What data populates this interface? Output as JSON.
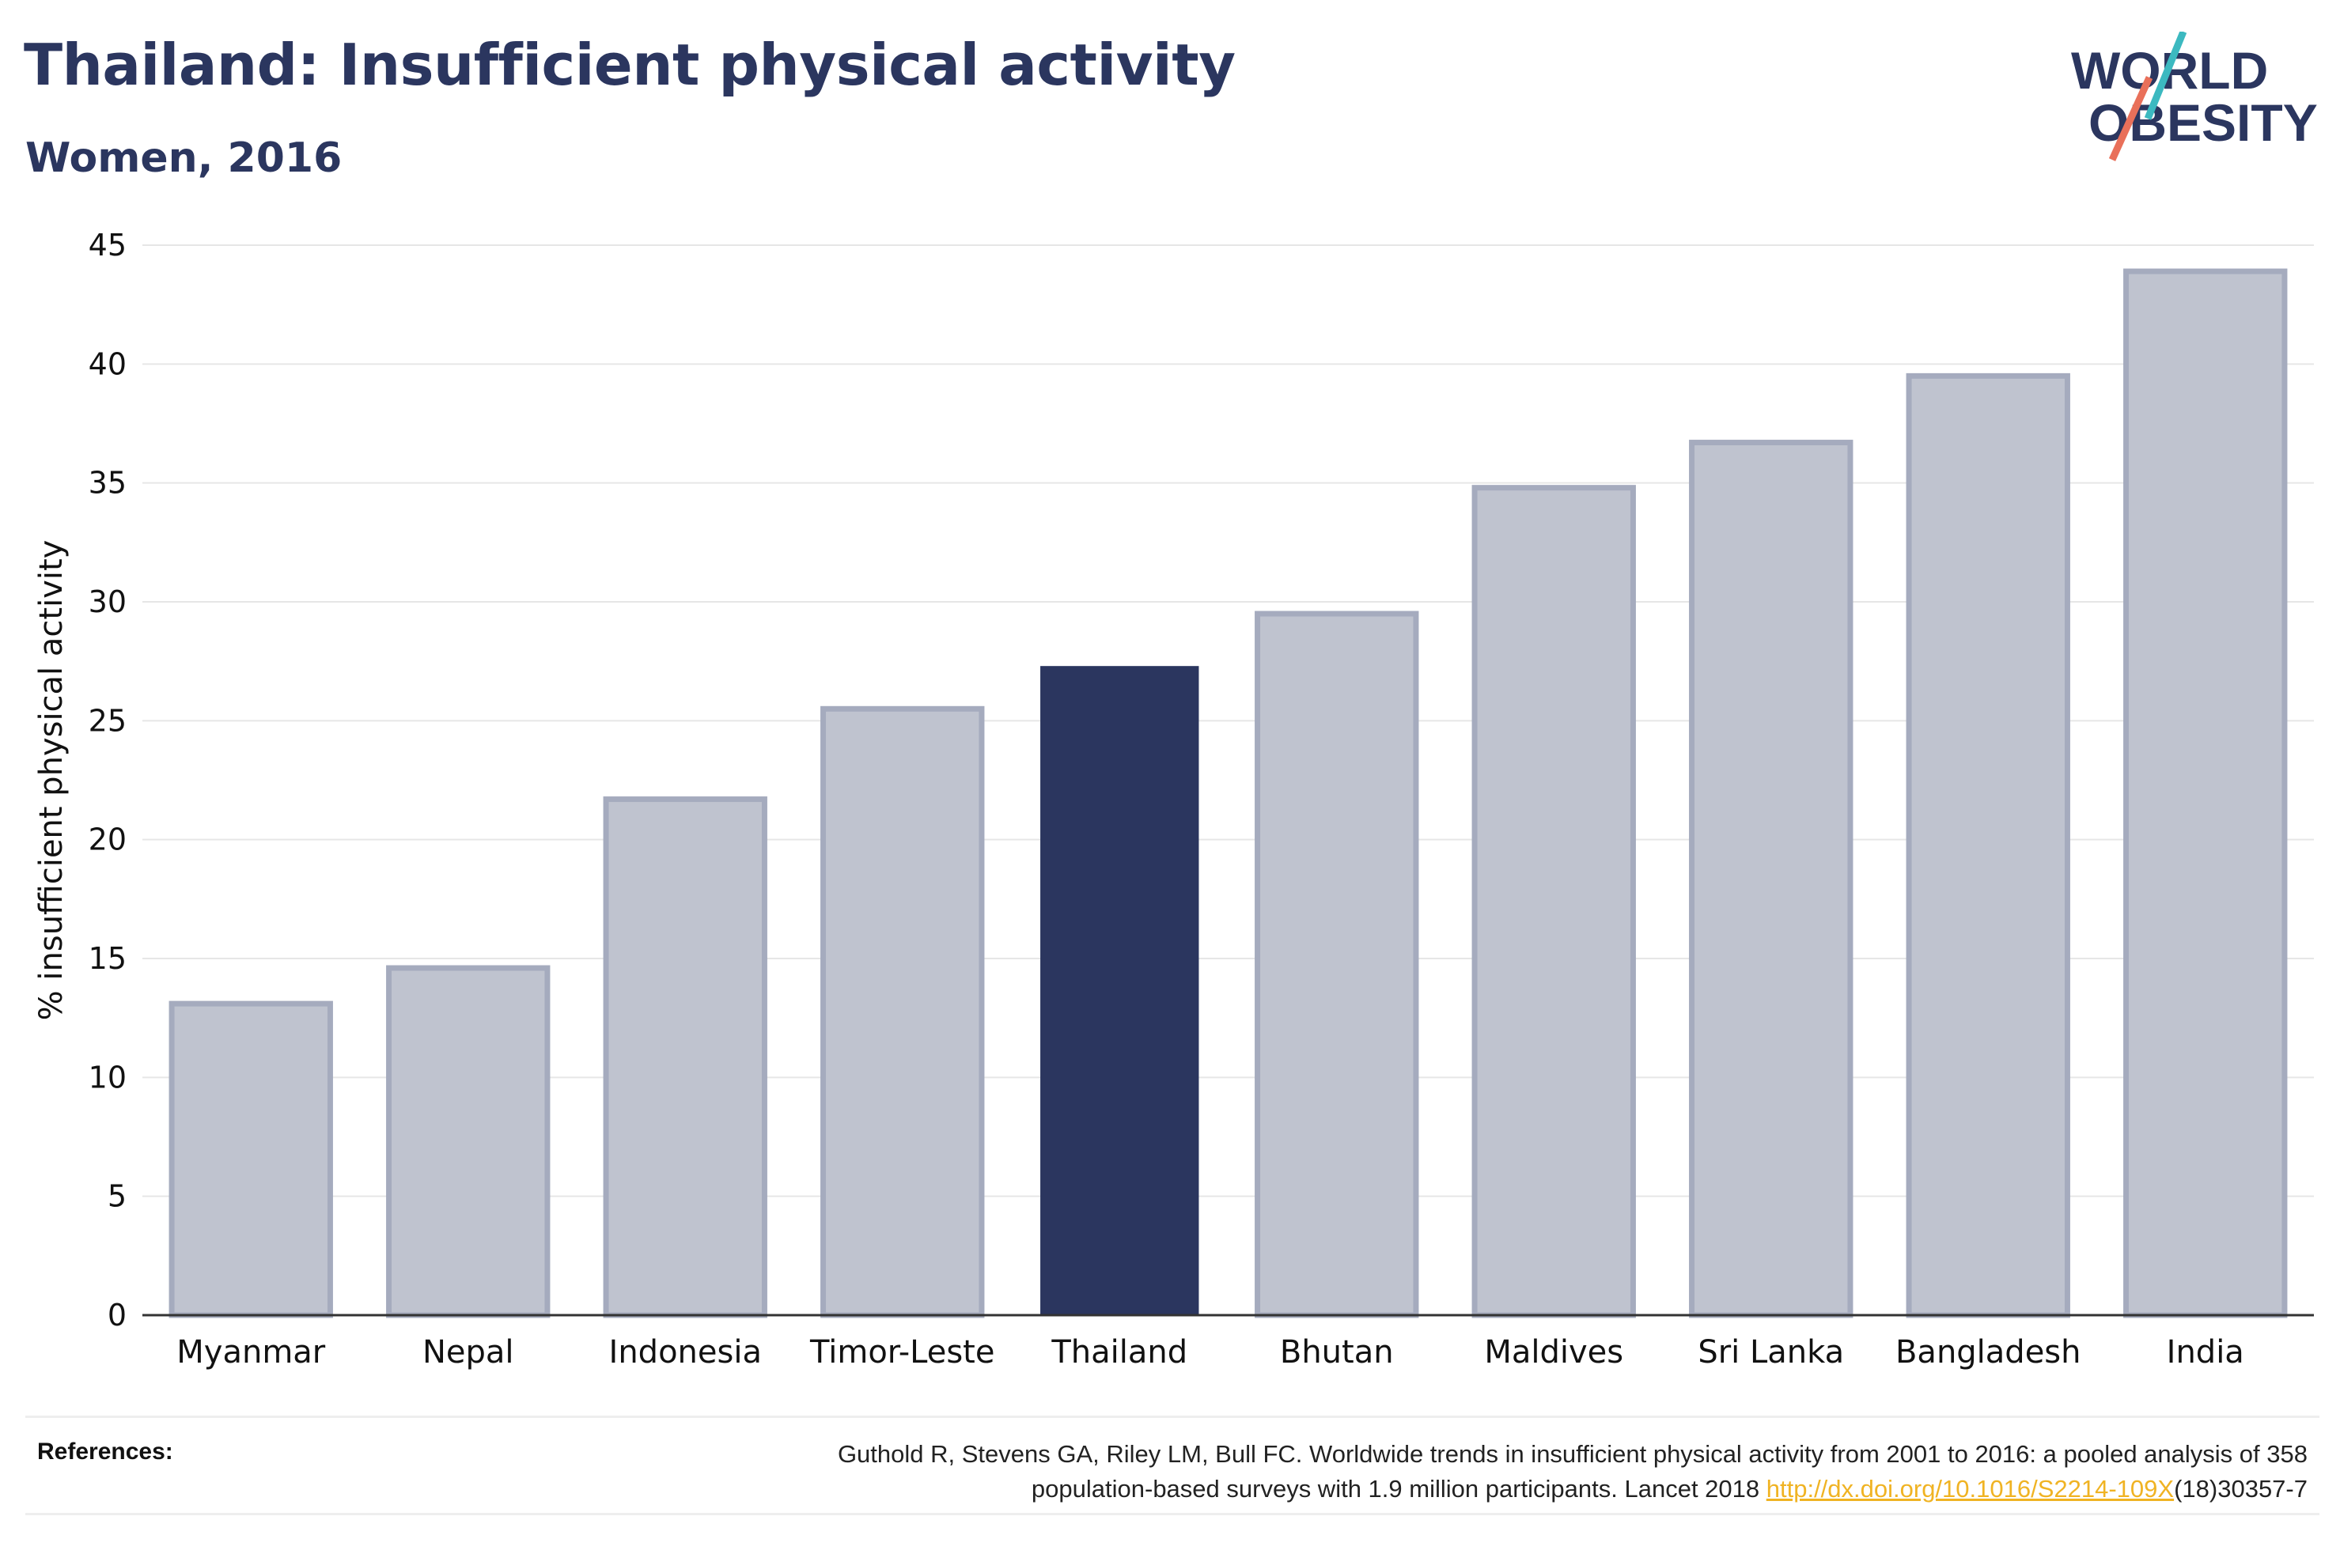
{
  "header": {
    "title": "Thailand: Insufficient physical activity",
    "subtitle": "Women, 2016"
  },
  "logo": {
    "line1": "WORLD",
    "line2": "OBESITY",
    "accent_colors": [
      "#3cb9c0",
      "#e9705a"
    ]
  },
  "references": {
    "label": "References:",
    "line1": "Guthold R, Stevens GA, Riley LM, Bull FC. Worldwide trends in insufficient physical activity from 2001 to 2016: a pooled analysis of 358",
    "line2_prefix": "population-based surveys with 1.9 million participants. Lancet 2018 ",
    "link_text": "http://dx.doi.org/10.1016/S2214-109X",
    "line2_suffix": "(18)30357-7"
  },
  "colors": {
    "highlight": "#2b365f",
    "other_fill": "#bfc3cf",
    "other_stroke": "#a5abbe",
    "grid": "#e6e6e6",
    "link": "#f0b323"
  },
  "chart_data": {
    "type": "bar",
    "title": "Thailand: Insufficient physical activity",
    "subtitle": "Women, 2016",
    "xlabel": "",
    "ylabel": "% insufficient physical activity",
    "ylim": [
      0,
      45
    ],
    "yticks": [
      0,
      5,
      10,
      15,
      20,
      25,
      30,
      35,
      40,
      45
    ],
    "grid": true,
    "highlight": "Thailand",
    "categories": [
      "Myanmar",
      "Nepal",
      "Indonesia",
      "Timor-Leste",
      "Thailand",
      "Bhutan",
      "Maldives",
      "Sri Lanka",
      "Bangladesh",
      "India"
    ],
    "values": [
      13.1,
      14.6,
      21.7,
      25.5,
      27.3,
      29.5,
      34.8,
      36.7,
      39.5,
      43.9
    ]
  }
}
